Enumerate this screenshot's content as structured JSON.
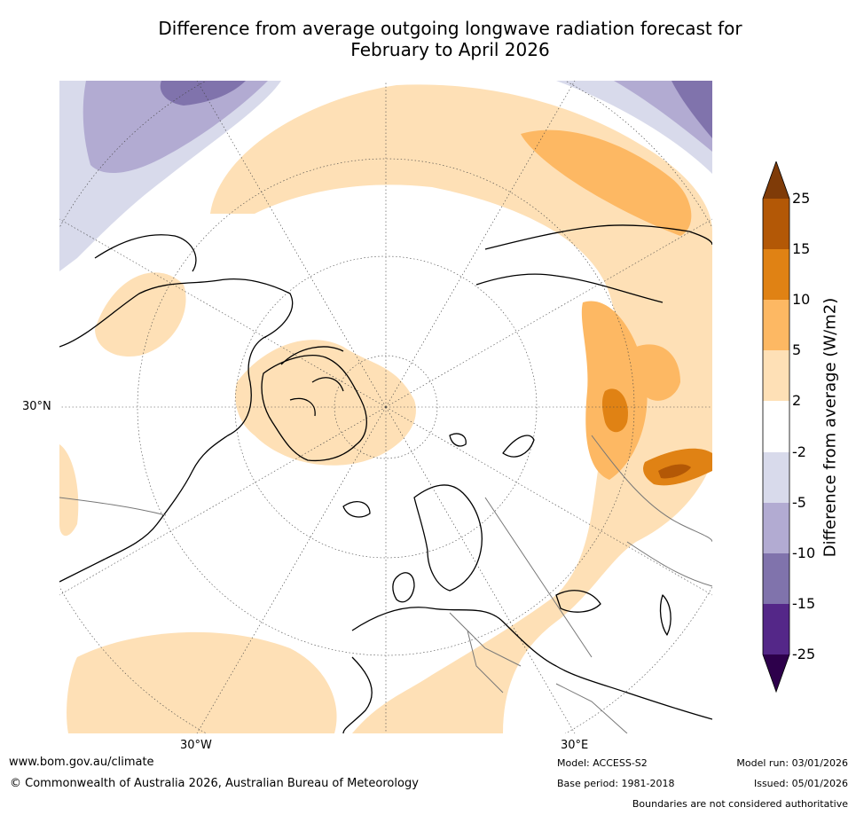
{
  "title": {
    "line1": "Difference from average outgoing longwave radiation forecast for",
    "line2": "February to April 2026"
  },
  "axis_labels": {
    "lat_30n": "30°N",
    "lon_30w": "30°W",
    "lon_30e": "30°E"
  },
  "legend": {
    "title": "Difference from average (W/m2)",
    "ticks": [
      "25",
      "15",
      "10",
      "5",
      "2",
      "-2",
      "-5",
      "-10",
      "-15",
      "-25"
    ],
    "colors": {
      "over": "#7f3b08",
      "b15_25": "#b35806",
      "b10_15": "#e08214",
      "b5_10": "#fdb863",
      "b2_5": "#fee0b6",
      "neutral": "#ffffff",
      "bm5_m2": "#d8daeb",
      "bm10_m5": "#b2abd2",
      "bm15_m10": "#8073ac",
      "bm25_m15": "#542788",
      "under": "#2d004b"
    }
  },
  "footer": {
    "website": "www.bom.gov.au/climate",
    "copyright": "© Commonwealth of Australia 2026, Australian Bureau of Meteorology",
    "model": "Model: ACCESS-S2",
    "base_period": "Base period: 1981-2018",
    "model_run": "Model run: 03/01/2026",
    "issued": "Issued: 05/01/2026",
    "disclaimer": "Boundaries are not considered authoritative"
  }
}
